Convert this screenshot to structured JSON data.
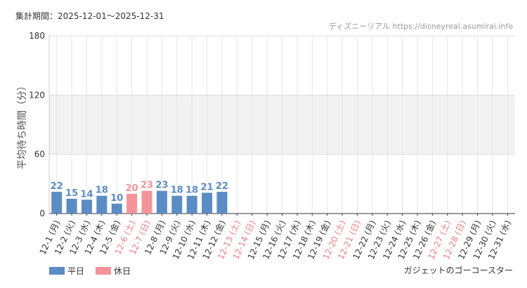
{
  "chart_data": {
    "type": "bar",
    "title": "集計期間：2025-12-01～2025-12-31",
    "source": "ディズニーリアル https://disneyreal.asumirai.info",
    "y_label": "平均待ち時間（分）",
    "footer": "ガジェットのゴーコースター",
    "categories": [
      "12-1 (月)",
      "12-2 (火)",
      "12-3 (水)",
      "12-4 (木)",
      "12-5 (金)",
      "12-6 (土)",
      "12-7 (日)",
      "12-8 (月)",
      "12-9 (火)",
      "12-10 (水)",
      "12-11 (木)",
      "12-12 (金)",
      "12-13 (土)",
      "12-14 (日)",
      "12-15 (月)",
      "12-16 (火)",
      "12-17 (水)",
      "12-18 (木)",
      "12-19 (金)",
      "12-20 (土)",
      "12-21 (日)",
      "12-22 (月)",
      "12-23 (火)",
      "12-24 (水)",
      "12-25 (木)",
      "12-26 (金)",
      "12-27 (土)",
      "12-28 (日)",
      "12-29 (月)",
      "12-30 (火)",
      "12-31 (水)"
    ],
    "category_colors": [
      "#333",
      "#333",
      "#333",
      "#333",
      "#333",
      "#f08080",
      "#f08080",
      "#333",
      "#333",
      "#333",
      "#333",
      "#333",
      "#f08080",
      "#f08080",
      "#333",
      "#333",
      "#333",
      "#333",
      "#333",
      "#f08080",
      "#f08080",
      "#333",
      "#333",
      "#333",
      "#333",
      "#333",
      "#f08080",
      "#f08080",
      "#333",
      "#333",
      "#333"
    ],
    "series": [
      {
        "name": "平日",
        "color": "#5b8cc4",
        "values": [
          22,
          15,
          14,
          18,
          10,
          null,
          null,
          23,
          18,
          18,
          21,
          22,
          null,
          null,
          null,
          null,
          null,
          null,
          null,
          null,
          null,
          null,
          null,
          null,
          null,
          null,
          null,
          null,
          null,
          null,
          null
        ]
      },
      {
        "name": "休日",
        "color": "#f4939a",
        "values": [
          null,
          null,
          null,
          null,
          null,
          20,
          23,
          null,
          null,
          null,
          null,
          null,
          null,
          null,
          null,
          null,
          null,
          null,
          null,
          null,
          null,
          null,
          null,
          null,
          null,
          null,
          null,
          null,
          null,
          null,
          null
        ]
      }
    ],
    "ylim": [
      0,
      180
    ],
    "yticks": [
      0,
      60,
      120,
      180
    ],
    "shaded_range": [
      60,
      120
    ],
    "grid": true
  }
}
